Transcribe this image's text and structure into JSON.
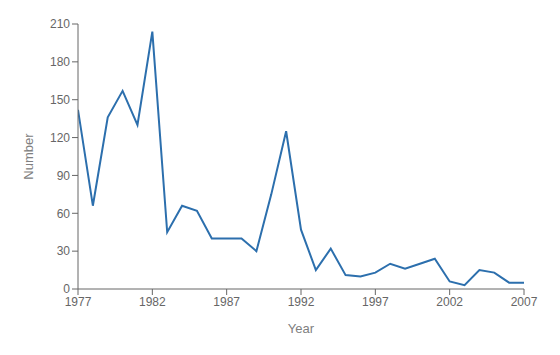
{
  "chart_data": {
    "type": "line",
    "x": [
      1977,
      1978,
      1979,
      1980,
      1981,
      1982,
      1983,
      1984,
      1985,
      1986,
      1987,
      1988,
      1989,
      1990,
      1991,
      1992,
      1993,
      1994,
      1995,
      1996,
      1997,
      1998,
      1999,
      2000,
      2001,
      2002,
      2003,
      2004,
      2005,
      2006,
      2007
    ],
    "values": [
      142,
      66,
      136,
      157,
      130,
      204,
      45,
      66,
      62,
      40,
      40,
      40,
      30,
      75,
      125,
      47,
      15,
      32,
      11,
      10,
      13,
      20,
      16,
      20,
      24,
      6,
      3,
      15,
      13,
      5,
      5
    ],
    "color": "#2c6fad",
    "xlabel": "Year",
    "ylabel": "Number",
    "xlim": [
      1977,
      2007
    ],
    "ylim": [
      0,
      210
    ],
    "xticks": [
      1977,
      1982,
      1987,
      1992,
      1997,
      2002,
      2007
    ],
    "yticks": [
      0,
      30,
      60,
      90,
      120,
      150,
      180,
      210
    ],
    "grid": false
  }
}
